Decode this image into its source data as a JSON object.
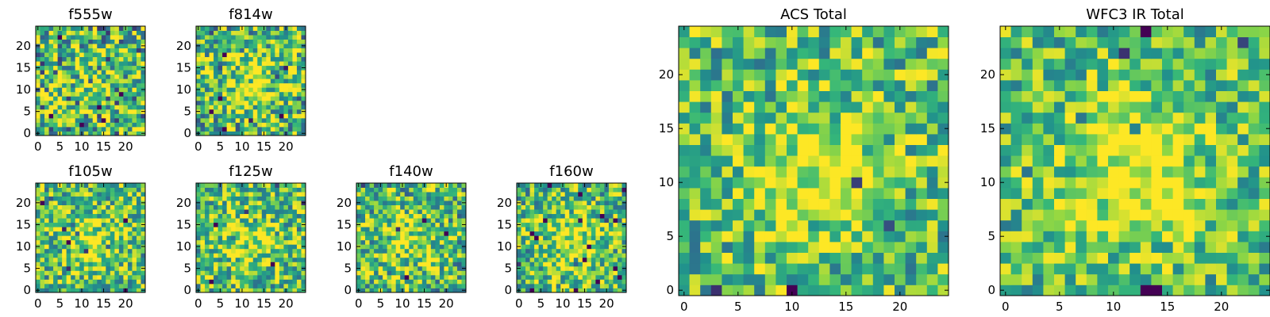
{
  "figure": {
    "colormap": [
      "#440154",
      "#31688e",
      "#21918c",
      "#35b779",
      "#90d743",
      "#fde725"
    ],
    "panels": [
      {
        "id": "f555w",
        "title": "f555w",
        "size": 25,
        "xticks": [
          0,
          5,
          10,
          15,
          20
        ],
        "yticks": [
          0,
          5,
          10,
          15,
          20
        ],
        "blob_strength": 0.05,
        "contrast": 0.75,
        "seed": 11
      },
      {
        "id": "f814w",
        "title": "f814w",
        "size": 25,
        "xticks": [
          0,
          5,
          10,
          15,
          20
        ],
        "yticks": [
          0,
          5,
          10,
          15,
          20
        ],
        "blob_strength": 0.35,
        "contrast": 0.7,
        "seed": 23
      },
      {
        "id": "f105w",
        "title": "f105w",
        "size": 25,
        "xticks": [
          0,
          5,
          10,
          15,
          20
        ],
        "yticks": [
          0,
          5,
          10,
          15,
          20
        ],
        "blob_strength": 0.3,
        "contrast": 0.6,
        "seed": 37
      },
      {
        "id": "f125w",
        "title": "f125w",
        "size": 25,
        "xticks": [
          0,
          5,
          10,
          15,
          20
        ],
        "yticks": [
          0,
          5,
          10,
          15,
          20
        ],
        "blob_strength": 0.25,
        "contrast": 0.6,
        "seed": 41
      },
      {
        "id": "f140w",
        "title": "f140w",
        "size": 25,
        "xticks": [
          0,
          5,
          10,
          15,
          20
        ],
        "yticks": [
          0,
          5,
          10,
          15,
          20
        ],
        "blob_strength": 0.25,
        "contrast": 0.65,
        "seed": 53
      },
      {
        "id": "f160w",
        "title": "f160w",
        "size": 25,
        "xticks": [
          0,
          5,
          10,
          15,
          20
        ],
        "yticks": [
          0,
          5,
          10,
          15,
          20
        ],
        "blob_strength": 0.35,
        "contrast": 0.6,
        "seed": 67
      },
      {
        "id": "acs_total",
        "title": "ACS Total",
        "size": 25,
        "xticks": [
          0,
          5,
          10,
          15,
          20
        ],
        "yticks": [
          0,
          5,
          10,
          15,
          20
        ],
        "blob_strength": 0.35,
        "contrast": 0.55,
        "seed": 79
      },
      {
        "id": "wfc3_ir_total",
        "title": "WFC3 IR Total",
        "size": 25,
        "xticks": [
          0,
          5,
          10,
          15,
          20
        ],
        "yticks": [
          0,
          5,
          10,
          15,
          20
        ],
        "blob_strength": 0.45,
        "contrast": 0.5,
        "seed": 97
      }
    ]
  },
  "chart_data": {
    "type": "heatmap",
    "description_units": "pixel index",
    "xlim": [
      -0.5,
      24.5
    ],
    "ylim": [
      -0.5,
      24.5
    ],
    "source_center": [
      12,
      11
    ],
    "panels": [
      "f555w",
      "f814w",
      "f105w",
      "f125w",
      "f140w",
      "f160w",
      "ACS Total",
      "WFC3 IR Total"
    ]
  }
}
